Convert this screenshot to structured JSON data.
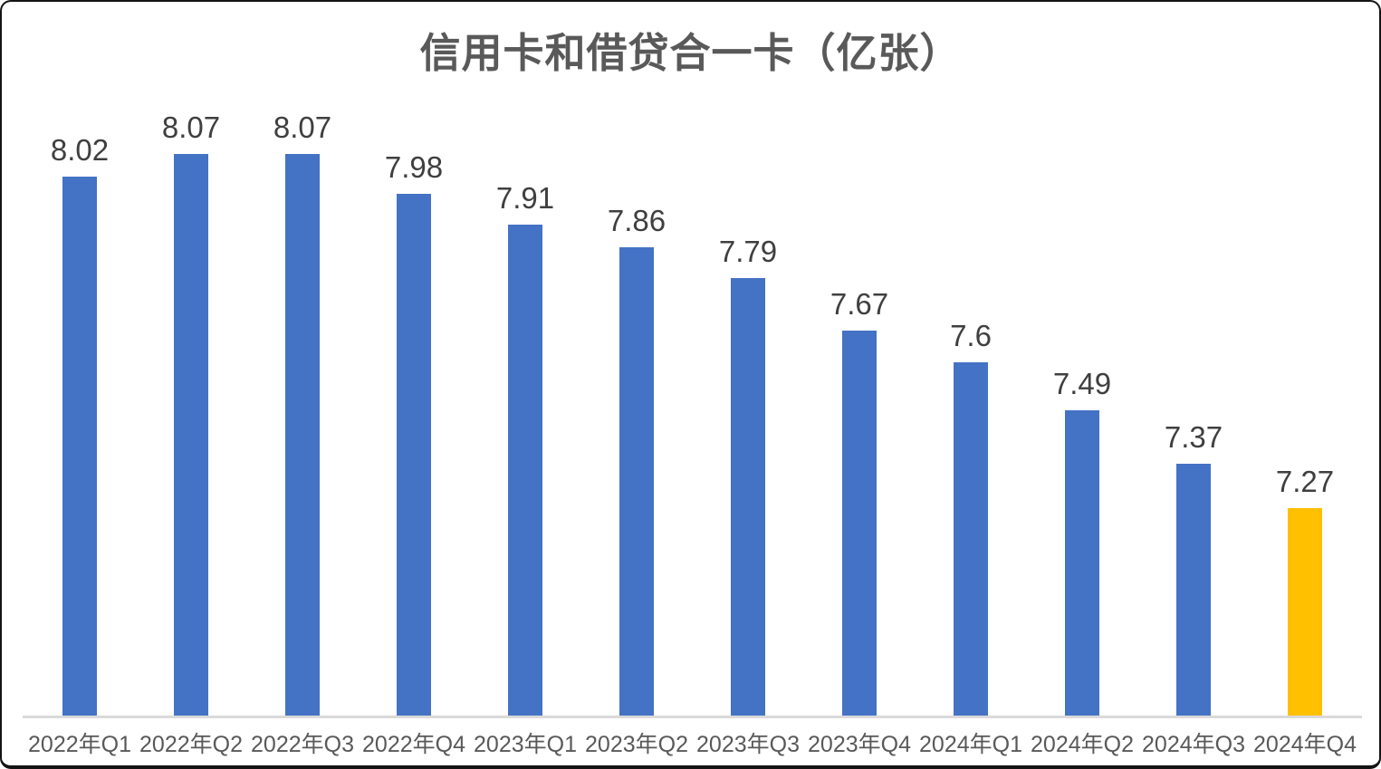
{
  "title": "信用卡和借贷合一卡（亿张）",
  "colors": {
    "bar_default": "#4472C4",
    "bar_highlight": "#FFC000",
    "axis_line": "#D9D9D9",
    "title_text": "#595959",
    "data_label_text": "#3F3F3F",
    "tick_label_text": "#595959",
    "frame_border": "#141414",
    "background": "#FFFFFF"
  },
  "chart_data": {
    "type": "bar",
    "title": "信用卡和借贷合一卡（亿张）",
    "xlabel": "",
    "ylabel": "",
    "categories": [
      "2022年Q1",
      "2022年Q2",
      "2022年Q3",
      "2022年Q4",
      "2023年Q1",
      "2023年Q2",
      "2023年Q3",
      "2023年Q4",
      "2024年Q1",
      "2024年Q2",
      "2024年Q3",
      "2024年Q4"
    ],
    "values": [
      8.02,
      8.07,
      8.07,
      7.98,
      7.91,
      7.86,
      7.79,
      7.67,
      7.6,
      7.49,
      7.37,
      7.27
    ],
    "data_labels": [
      "8.02",
      "8.07",
      "8.07",
      "7.98",
      "7.91",
      "7.86",
      "7.79",
      "7.67",
      "7.6",
      "7.49",
      "7.37",
      "7.27"
    ],
    "highlight_index": 11,
    "ylim": [
      6.8,
      8.2
    ],
    "grid": false,
    "legend": "none",
    "y_axis_visible": false,
    "data_labels_visible": true
  }
}
